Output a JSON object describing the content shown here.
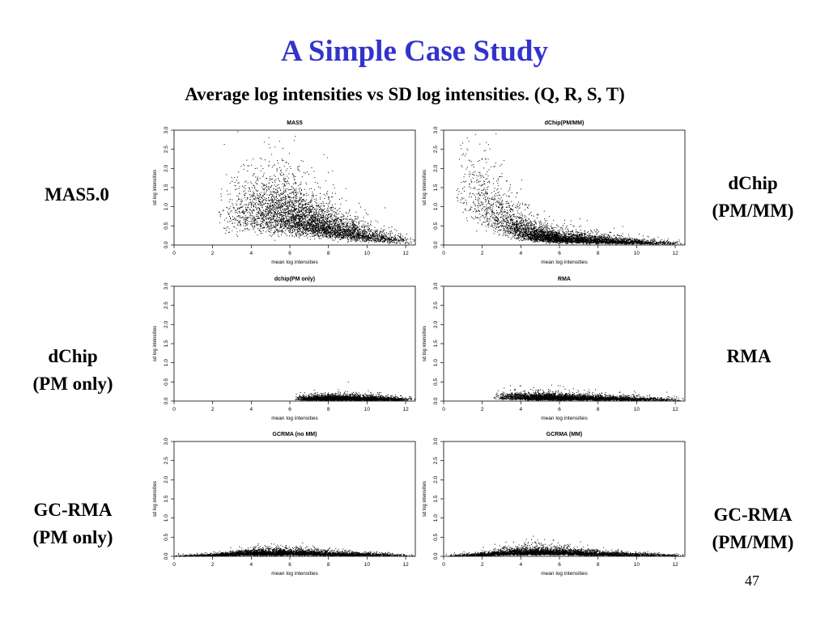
{
  "slide": {
    "title": "A Simple Case Study",
    "subtitle": "Average log intensities vs SD log intensities. (Q, R, S, T)",
    "page_number": "47",
    "title_color": "#3333cc",
    "side_labels": {
      "mas5": [
        "MAS5.0"
      ],
      "dchip_pmmm": [
        "dChip",
        "(PM/MM)"
      ],
      "dchip_pm": [
        "dChip",
        "(PM only)"
      ],
      "rma": [
        "RMA"
      ],
      "gcrma_pm": [
        "GC-RMA",
        "(PM only)"
      ],
      "gcrma_pmmm": [
        "GC-RMA",
        "(PM/MM)"
      ]
    }
  },
  "chart_data": [
    {
      "type": "scatter",
      "title": "MAS5",
      "xlabel": "mean log intensities",
      "ylabel": "sd log intensities",
      "xlim": [
        0,
        12.5
      ],
      "ylim": [
        0,
        3.0
      ],
      "xticks": [
        "0",
        "2",
        "4",
        "6",
        "8",
        "10",
        "12"
      ],
      "yticks": [
        "0.0",
        "0.5",
        "1.0",
        "1.5",
        "2.0",
        "2.5",
        "3.0"
      ],
      "n_points": 4500,
      "x_range": [
        2.2,
        12.5
      ],
      "x_mode": 6.5,
      "trend": [
        [
          2.5,
          0.8
        ],
        [
          4.0,
          0.95
        ],
        [
          5.5,
          0.85
        ],
        [
          7.0,
          0.65
        ],
        [
          8.5,
          0.42
        ],
        [
          10.0,
          0.25
        ],
        [
          11.5,
          0.15
        ],
        [
          12.5,
          0.1
        ]
      ]
    },
    {
      "type": "scatter",
      "title": "dChip(PM/MM)",
      "xlabel": "mean log intensities",
      "ylabel": "sd log intensities",
      "xlim": [
        0,
        12.5
      ],
      "ylim": [
        0,
        3.0
      ],
      "xticks": [
        "0",
        "2",
        "4",
        "6",
        "8",
        "10",
        "12"
      ],
      "yticks": [
        "0.0",
        "0.5",
        "1.0",
        "1.5",
        "2.0",
        "2.5",
        "3.0"
      ],
      "n_points": 4500,
      "x_range": [
        0.5,
        12.5
      ],
      "x_mode": 5.5,
      "trend": [
        [
          0.5,
          1.6
        ],
        [
          2.0,
          1.2
        ],
        [
          3.5,
          0.55
        ],
        [
          4.5,
          0.3
        ],
        [
          6.0,
          0.18
        ],
        [
          8.0,
          0.13
        ],
        [
          10.0,
          0.08
        ],
        [
          12.5,
          0.05
        ]
      ]
    },
    {
      "type": "scatter",
      "title": "dchip(PM only)",
      "xlabel": "mean log intensities",
      "ylabel": "sd log intensities",
      "xlim": [
        0,
        12.5
      ],
      "ylim": [
        0,
        3.0
      ],
      "xticks": [
        "0",
        "2",
        "4",
        "6",
        "8",
        "10",
        "12"
      ],
      "yticks": [
        "0.0",
        "0.5",
        "1.0",
        "1.5",
        "2.0",
        "2.5",
        "3.0"
      ],
      "n_points": 3500,
      "x_range": [
        6.2,
        12.5
      ],
      "x_mode": 8.0,
      "trend": [
        [
          6.2,
          0.07
        ],
        [
          8.0,
          0.08
        ],
        [
          10.0,
          0.07
        ],
        [
          12.5,
          0.05
        ]
      ]
    },
    {
      "type": "scatter",
      "title": "RMA",
      "xlabel": "mean log intensities",
      "ylabel": "sd log intensities",
      "xlim": [
        0,
        12.5
      ],
      "ylim": [
        0,
        3.0
      ],
      "xticks": [
        "0",
        "2",
        "4",
        "6",
        "8",
        "10",
        "12"
      ],
      "yticks": [
        "0.0",
        "0.5",
        "1.0",
        "1.5",
        "2.0",
        "2.5",
        "3.0"
      ],
      "n_points": 4000,
      "x_range": [
        2.5,
        12.5
      ],
      "x_mode": 5.0,
      "trend": [
        [
          2.5,
          0.12
        ],
        [
          5.0,
          0.1
        ],
        [
          8.0,
          0.08
        ],
        [
          10.0,
          0.06
        ],
        [
          12.5,
          0.04
        ]
      ]
    },
    {
      "type": "scatter",
      "title": "GCRMA (no MM)",
      "xlabel": "mean log intensities",
      "ylabel": "sd log intensities",
      "xlim": [
        0,
        12.5
      ],
      "ylim": [
        0,
        3.0
      ],
      "xticks": [
        "0",
        "2",
        "4",
        "6",
        "8",
        "10",
        "12"
      ],
      "yticks": [
        "0.0",
        "0.5",
        "1.0",
        "1.5",
        "2.0",
        "2.5",
        "3.0"
      ],
      "n_points": 4000,
      "x_range": [
        0.0,
        12.5
      ],
      "x_mode": 5.0,
      "trend": [
        [
          0.0,
          0.02
        ],
        [
          2.0,
          0.04
        ],
        [
          4.0,
          0.09
        ],
        [
          6.0,
          0.1
        ],
        [
          8.0,
          0.07
        ],
        [
          10.0,
          0.05
        ],
        [
          12.5,
          0.03
        ]
      ]
    },
    {
      "type": "scatter",
      "title": "GCRMA (MM)",
      "xlabel": "mean log intensities",
      "ylabel": "sd log intensities",
      "xlim": [
        0,
        12.5
      ],
      "ylim": [
        0,
        3.0
      ],
      "xticks": [
        "0",
        "2",
        "4",
        "6",
        "8",
        "10",
        "12"
      ],
      "yticks": [
        "0.0",
        "0.5",
        "1.0",
        "1.5",
        "2.0",
        "2.5",
        "3.0"
      ],
      "n_points": 4000,
      "x_range": [
        0.0,
        12.5
      ],
      "x_mode": 4.5,
      "trend": [
        [
          0.0,
          0.02
        ],
        [
          2.0,
          0.05
        ],
        [
          4.0,
          0.12
        ],
        [
          6.0,
          0.11
        ],
        [
          8.0,
          0.07
        ],
        [
          10.0,
          0.05
        ],
        [
          12.5,
          0.03
        ]
      ]
    }
  ]
}
